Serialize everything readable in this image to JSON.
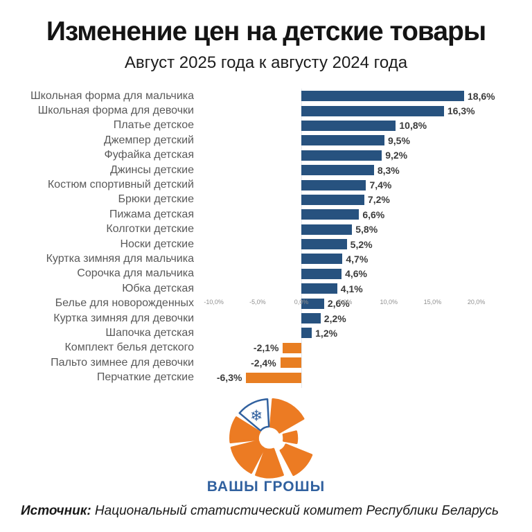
{
  "title": "Изменение цен на детские товары",
  "subtitle": "Август 2025 года к августу 2024 года",
  "source": {
    "label": "Источник:",
    "text": " Национальный статистический комитет Республики Беларусь"
  },
  "logo": {
    "text": "ВАШЫ ГРОШЫ",
    "orange": "#ec7b23",
    "blue": "#31619f",
    "snowflake_icon": "❄"
  },
  "chart_data": {
    "type": "bar",
    "orientation": "horizontal",
    "title": "Изменение цен на детские товары",
    "subtitle": "Август 2025 года к августу 2024 года",
    "categories": [
      "Школьная форма для мальчика",
      "Школьная форма для девочки",
      "Платье детское",
      "Джемпер детский",
      "Фуфайка детская",
      "Джинсы детские",
      "Костюм спортивный детский",
      "Брюки детские",
      "Пижама детская",
      "Колготки детские",
      "Носки детские",
      "Куртка зимняя для мальчика",
      "Сорочка для мальчика",
      "Юбка детская",
      "Белье для новорожденных",
      "Куртка зимняя для девочки",
      "Шапочка детская",
      "Комплект белья детского",
      "Пальто зимнее для девочки",
      "Перчаткие детские"
    ],
    "values": [
      18.6,
      16.3,
      10.8,
      9.5,
      9.2,
      8.3,
      7.4,
      7.2,
      6.6,
      5.8,
      5.2,
      4.7,
      4.6,
      4.1,
      2.6,
      2.2,
      1.2,
      -2.1,
      -2.4,
      -6.3
    ],
    "value_labels": [
      "18,6%",
      "16,3%",
      "10,8%",
      "9,5%",
      "9,2%",
      "8,3%",
      "7,4%",
      "7,2%",
      "6,6%",
      "5,8%",
      "5,2%",
      "4,7%",
      "4,6%",
      "4,1%",
      "2,6%",
      "2,2%",
      "1,2%",
      "-2,1%",
      "-2,4%",
      "-6,3%"
    ],
    "x_ticks": {
      "values": [
        -10,
        -5,
        0,
        5,
        10,
        15,
        20
      ],
      "labels": [
        "-10,0%",
        "-5,0%",
        "0,0%",
        "5,0%",
        "10,0%",
        "15,0%",
        "20,0%"
      ]
    },
    "xlim": [
      -10,
      26
    ],
    "grid": false,
    "legend": false,
    "positive_color": "#27527f",
    "negative_color": "#e87e22",
    "category_label_color": "#595959",
    "value_label_color": "#3b3b3b",
    "tick_label_color": "#8f8f8f"
  }
}
